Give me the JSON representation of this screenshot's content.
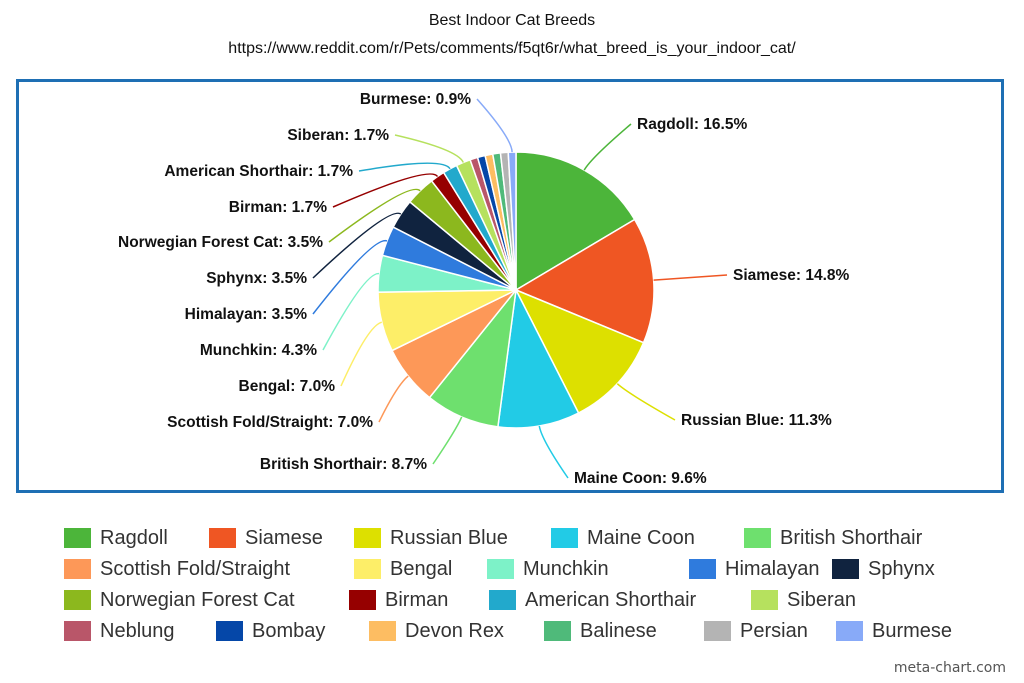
{
  "chart_data": {
    "type": "pie",
    "title": "Best Indoor Cat Breeds",
    "subtitle": "https://www.reddit.com/r/Pets/comments/f5qt6r/what_breed_is_your_indoor_cat/",
    "legend": "bottom",
    "slices": [
      {
        "label": "Ragdoll",
        "value": 16.5,
        "color": "#4cb53a",
        "label_text": "Ragdoll: 16.5%"
      },
      {
        "label": "Siamese",
        "value": 14.8,
        "color": "#ef5623",
        "label_text": "Siamese: 14.8%"
      },
      {
        "label": "Russian Blue",
        "value": 11.3,
        "color": "#dde000",
        "label_text": "Russian Blue: 11.3%"
      },
      {
        "label": "Maine Coon",
        "value": 9.6,
        "color": "#22cbe6",
        "label_text": "Maine Coon: 9.6%"
      },
      {
        "label": "British Shorthair",
        "value": 8.7,
        "color": "#6ee06e",
        "label_text": "British Shorthair: 8.7%"
      },
      {
        "label": "Scottish Fold/Straight",
        "value": 7.0,
        "color": "#fd9858",
        "label_text": "Scottish Fold/Straight: 7.0%"
      },
      {
        "label": "Bengal",
        "value": 7.0,
        "color": "#fdee68",
        "label_text": "Bengal: 7.0%"
      },
      {
        "label": "Munchkin",
        "value": 4.3,
        "color": "#7df2c8",
        "label_text": "Munchkin: 4.3%"
      },
      {
        "label": "Himalayan",
        "value": 3.5,
        "color": "#2f7bdd",
        "label_text": "Himalayan: 3.5%"
      },
      {
        "label": "Sphynx",
        "value": 3.5,
        "color": "#10233f",
        "label_text": "Sphynx: 3.5%"
      },
      {
        "label": "Norwegian Forest Cat",
        "value": 3.5,
        "color": "#8cb81e",
        "label_text": "Norwegian Forest Cat: 3.5%"
      },
      {
        "label": "Birman",
        "value": 1.7,
        "color": "#960000",
        "label_text": "Birman: 1.7%"
      },
      {
        "label": "American Shorthair",
        "value": 1.7,
        "color": "#22a9cc",
        "label_text": "American Shorthair: 1.7%"
      },
      {
        "label": "Siberan",
        "value": 1.7,
        "color": "#b6e15e",
        "label_text": "Siberan: 1.7%"
      },
      {
        "label": "Neblung",
        "value": 0.9,
        "color": "#b95669",
        "label_text": ""
      },
      {
        "label": "Bombay",
        "value": 0.9,
        "color": "#0547a8",
        "label_text": ""
      },
      {
        "label": "Devon Rex",
        "value": 0.9,
        "color": "#fdbd62",
        "label_text": ""
      },
      {
        "label": "Balinese",
        "value": 0.9,
        "color": "#4fba7a",
        "label_text": ""
      },
      {
        "label": "Persian",
        "value": 0.9,
        "color": "#b4b4b4",
        "label_text": ""
      },
      {
        "label": "Burmese",
        "value": 0.9,
        "color": "#88aaf8",
        "label_text": "Burmese: 0.9%"
      }
    ]
  },
  "watermark": "meta-chart.com"
}
